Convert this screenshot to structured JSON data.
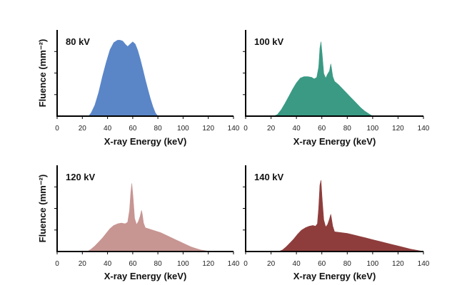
{
  "chart_data": [
    {
      "type": "area",
      "panel_label": "80 kV",
      "xlabel": "X-ray Energy (keV)",
      "ylabel": "Fluence (mm⁻²)",
      "xticks": [
        0,
        20,
        40,
        60,
        80,
        100,
        120,
        140
      ],
      "xlim": [
        0,
        140
      ],
      "ylim": [
        0,
        100
      ],
      "color": "#5a86c8",
      "series": [
        {
          "x": [
            25,
            27,
            30,
            33,
            36,
            39,
            42,
            45,
            48,
            50,
            52,
            54,
            56,
            58,
            60,
            62,
            64,
            66,
            68,
            70,
            72,
            74,
            76,
            78,
            80
          ],
          "y": [
            0,
            4,
            14,
            30,
            50,
            68,
            84,
            93,
            96,
            96,
            95,
            91,
            88,
            91,
            94,
            91,
            83,
            72,
            59,
            46,
            34,
            22,
            12,
            4,
            0
          ]
        }
      ]
    },
    {
      "type": "area",
      "panel_label": "100 kV",
      "xlabel": "X-ray Energy (keV)",
      "ylabel": "",
      "xticks": [
        0,
        20,
        40,
        60,
        80,
        100,
        120,
        140
      ],
      "xlim": [
        0,
        140
      ],
      "ylim": [
        0,
        100
      ],
      "color": "#3a9a84",
      "series": [
        {
          "x": [
            22,
            25,
            28,
            31,
            34,
            37,
            40,
            43,
            46,
            49,
            52,
            54,
            56,
            57.5,
            58.5,
            59.3,
            60.3,
            61.5,
            63,
            64.5,
            66,
            67,
            67.6,
            68.6,
            70,
            73,
            76,
            79,
            82,
            85,
            88,
            91,
            94,
            97,
            100
          ],
          "y": [
            0,
            2,
            8,
            16,
            25,
            34,
            42,
            48,
            50,
            50,
            49,
            47,
            49,
            62,
            86,
            94,
            78,
            54,
            48,
            53,
            57,
            66,
            61,
            50,
            44,
            40,
            35,
            30,
            25,
            20,
            15,
            10,
            6,
            3,
            0
          ]
        }
      ]
    },
    {
      "type": "area",
      "panel_label": "120 kV",
      "xlabel": "X-ray Energy (keV)",
      "ylabel": "Fluence (mm⁻²)",
      "xticks": [
        0,
        20,
        40,
        60,
        80,
        100,
        120,
        140
      ],
      "xlim": [
        0,
        140
      ],
      "ylim": [
        0,
        100
      ],
      "color": "#c79592",
      "series": [
        {
          "x": [
            24,
            27,
            30,
            33,
            36,
            39,
            42,
            45,
            48,
            51,
            54,
            56,
            57.5,
            58.5,
            59.3,
            60.3,
            61.5,
            63,
            64.5,
            66,
            67,
            67.6,
            68.6,
            70,
            74,
            78,
            82,
            86,
            90,
            94,
            98,
            102,
            106,
            110,
            114,
            118,
            120
          ],
          "y": [
            0,
            3,
            7,
            12,
            17,
            23,
            29,
            33,
            35,
            36,
            35,
            37,
            52,
            75,
            86,
            68,
            42,
            34,
            38,
            45,
            52,
            47,
            36,
            30,
            28,
            26,
            24,
            21,
            18,
            15,
            12,
            9,
            6,
            4,
            2,
            1,
            0
          ]
        }
      ]
    },
    {
      "type": "area",
      "panel_label": "140 kV",
      "xlabel": "X-ray Energy (keV)",
      "ylabel": "",
      "xticks": [
        0,
        20,
        40,
        60,
        80,
        100,
        120,
        140
      ],
      "xlim": [
        0,
        140
      ],
      "ylim": [
        0,
        100
      ],
      "color": "#8e3d3c",
      "series": [
        {
          "x": [
            26,
            29,
            32,
            35,
            38,
            41,
            44,
            47,
            50,
            53,
            55,
            56.5,
            57.5,
            58.5,
            59.3,
            60.3,
            61.5,
            63,
            64.5,
            66,
            67,
            67.6,
            68.6,
            70,
            75,
            80,
            85,
            90,
            95,
            100,
            105,
            110,
            115,
            120,
            125,
            130,
            135,
            140
          ],
          "y": [
            0,
            2,
            6,
            11,
            16,
            22,
            27,
            30,
            32,
            33,
            32,
            35,
            55,
            84,
            90,
            66,
            40,
            31,
            34,
            41,
            47,
            42,
            32,
            25,
            24,
            23,
            21,
            19,
            17,
            15,
            13,
            11,
            9,
            7,
            5,
            3,
            1.5,
            0
          ]
        }
      ]
    }
  ]
}
